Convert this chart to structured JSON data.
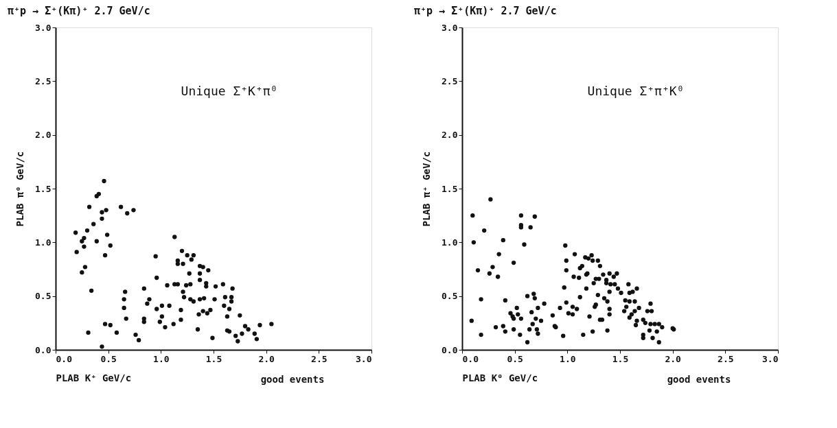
{
  "chart_data": [
    {
      "type": "scatter",
      "title": "π⁺p → Σ⁺(Kπ)⁺          2.7 GeV/c",
      "xlabel": "PLAB K⁺   GeV/c",
      "ylabel": "PLAB π⁰   GeV/c",
      "annotations": [
        "Unique Σ⁺K⁺π⁰",
        "good events"
      ],
      "xlim": [
        0,
        3
      ],
      "ylim": [
        0,
        3
      ],
      "xticks": [
        {
          "value": 0,
          "label": "0.0"
        },
        0.5,
        {
          "value": 1,
          "label": "1.0"
        },
        1.5,
        {
          "value": 2,
          "label": "2.0"
        },
        2.5,
        {
          "value": 3,
          "label": "3.0"
        }
      ],
      "yticks": [
        {
          "value": 0,
          "label": "0.0"
        },
        0.5,
        {
          "value": 1,
          "label": "1.0"
        },
        1.5,
        {
          "value": 2,
          "label": "2.0"
        },
        2.5,
        {
          "value": 3,
          "label": "3.0"
        }
      ],
      "marker": "circle",
      "grid": false,
      "series": [
        {
          "color": "#111111",
          "x": [
            0.46,
            0.39,
            0.41,
            0.32,
            0.44,
            0.48,
            0.62,
            0.68,
            0.74,
            0.36,
            0.44,
            0.3,
            0.19,
            0.27,
            0.25,
            0.49,
            0.39,
            0.2,
            0.27,
            0.52,
            0.47,
            0.28,
            0.25,
            0.34,
            0.31,
            0.47,
            0.52,
            0.58,
            0.44,
            0.66,
            0.65,
            0.65,
            0.67,
            0.76,
            0.79,
            0.84,
            0.89,
            0.87,
            0.84,
            0.84,
            0.95,
            0.96,
            0.96,
            1.01,
            1.01,
            0.99,
            1.04,
            1.08,
            1.06,
            1.13,
            1.2,
            1.16,
            1.16,
            1.21,
            1.25,
            1.31,
            1.29,
            1.13,
            1.16,
            1.21,
            1.22,
            1.24,
            1.28,
            1.27,
            1.28,
            1.31,
            1.19,
            1.19,
            1.12,
            1.37,
            1.4,
            1.45,
            1.37,
            1.37,
            1.43,
            1.43,
            1.37,
            1.41,
            1.51,
            1.52,
            1.59,
            1.68,
            1.61,
            1.67,
            1.67,
            1.6,
            1.65,
            1.63,
            1.4,
            1.44,
            1.47,
            1.36,
            1.35,
            1.49,
            1.63,
            1.65,
            1.75,
            1.8,
            1.83,
            1.71,
            1.77,
            1.73,
            1.89,
            1.91,
            1.94,
            2.05
          ],
          "values": [
            1.57,
            1.43,
            1.45,
            1.33,
            1.28,
            1.3,
            1.33,
            1.27,
            1.3,
            1.17,
            1.22,
            1.11,
            1.09,
            1.04,
            1.01,
            1.07,
            1.01,
            0.91,
            0.96,
            0.97,
            0.88,
            0.77,
            0.72,
            0.55,
            0.16,
            0.24,
            0.23,
            0.16,
            0.03,
            0.54,
            0.47,
            0.39,
            0.29,
            0.14,
            0.09,
            0.57,
            0.47,
            0.43,
            0.29,
            0.26,
            0.87,
            0.67,
            0.38,
            0.41,
            0.31,
            0.26,
            0.21,
            0.41,
            0.6,
            1.05,
            0.92,
            0.83,
            0.8,
            0.8,
            0.88,
            0.88,
            0.84,
            0.61,
            0.61,
            0.54,
            0.49,
            0.6,
            0.61,
            0.71,
            0.47,
            0.45,
            0.37,
            0.28,
            0.24,
            0.78,
            0.77,
            0.74,
            0.71,
            0.65,
            0.62,
            0.59,
            0.47,
            0.48,
            0.47,
            0.59,
            0.61,
            0.57,
            0.49,
            0.49,
            0.45,
            0.41,
            0.38,
            0.31,
            0.36,
            0.34,
            0.37,
            0.33,
            0.19,
            0.11,
            0.18,
            0.17,
            0.32,
            0.22,
            0.19,
            0.13,
            0.15,
            0.08,
            0.15,
            0.1,
            0.23,
            0.24
          ]
        }
      ]
    },
    {
      "type": "scatter",
      "title": "π⁺p → Σ⁺(Kπ)⁺          2.7 GeV/c",
      "xlabel": "PLAB K⁰   GeV/c",
      "ylabel": "PLAB π⁺   GeV/c",
      "annotations": [
        "Unique Σ⁺π⁺K⁰",
        "good events"
      ],
      "xlim": [
        0,
        3
      ],
      "ylim": [
        0,
        3
      ],
      "xticks": [
        {
          "value": 0,
          "label": "0.0"
        },
        0.5,
        {
          "value": 1,
          "label": "1.0"
        },
        1.5,
        {
          "value": 2,
          "label": "2.0"
        },
        2.5,
        {
          "value": 3,
          "label": "3.0"
        }
      ],
      "yticks": [
        {
          "value": 0,
          "label": "0.0"
        },
        0.5,
        {
          "value": 1,
          "label": "1.0"
        },
        1.5,
        {
          "value": 2,
          "label": "2.0"
        },
        2.5,
        {
          "value": 3,
          "label": "3.0"
        }
      ],
      "marker": "circle",
      "grid": false,
      "series": [
        {
          "color": "#111111",
          "x": [
            0.1,
            0.27,
            0.11,
            0.21,
            0.39,
            0.35,
            0.15,
            0.29,
            0.26,
            0.34,
            0.49,
            0.56,
            0.56,
            0.56,
            0.69,
            0.65,
            0.59,
            0.18,
            0.09,
            0.18,
            0.32,
            0.39,
            0.41,
            0.41,
            0.46,
            0.49,
            0.48,
            0.52,
            0.53,
            0.56,
            0.49,
            0.55,
            0.62,
            0.62,
            0.68,
            0.69,
            0.66,
            0.67,
            0.7,
            0.72,
            0.75,
            0.78,
            0.64,
            0.71,
            0.72,
            0.86,
            0.88,
            0.89,
            0.93,
            0.96,
            0.97,
            0.99,
            1.01,
            1.05,
            1.05,
            1.09,
            0.98,
            0.99,
            0.99,
            1.06,
            1.07,
            1.12,
            1.14,
            1.11,
            1.12,
            1.18,
            1.18,
            1.19,
            1.17,
            1.2,
            1.23,
            1.24,
            1.15,
            1.21,
            1.24,
            1.25,
            1.27,
            1.3,
            1.29,
            1.31,
            1.26,
            1.27,
            1.29,
            1.31,
            1.33,
            1.34,
            1.37,
            1.4,
            1.44,
            1.47,
            1.37,
            1.41,
            1.45,
            1.35,
            1.38,
            1.4,
            1.4,
            1.4,
            1.38,
            1.48,
            1.51,
            1.58,
            1.59,
            1.62,
            1.66,
            1.55,
            1.59,
            1.64,
            1.54,
            1.56,
            1.59,
            1.61,
            1.64,
            1.68,
            1.66,
            1.65,
            1.72,
            1.76,
            1.79,
            1.74,
            1.79,
            1.83,
            1.87,
            1.72,
            1.72,
            1.78,
            1.81,
            1.85,
            1.87,
            1.9,
            2.0,
            2.01,
            1.8
          ],
          "values": [
            1.25,
            1.4,
            1.0,
            1.11,
            1.02,
            0.89,
            0.74,
            0.77,
            0.71,
            0.68,
            0.81,
            1.25,
            1.16,
            1.14,
            1.24,
            1.14,
            0.98,
            0.47,
            0.27,
            0.14,
            0.21,
            0.22,
            0.17,
            0.46,
            0.34,
            0.29,
            0.31,
            0.39,
            0.33,
            0.29,
            0.19,
            0.14,
            0.07,
            0.5,
            0.52,
            0.48,
            0.35,
            0.24,
            0.29,
            0.39,
            0.27,
            0.43,
            0.19,
            0.19,
            0.15,
            0.32,
            0.22,
            0.21,
            0.39,
            0.13,
            0.58,
            0.44,
            0.34,
            0.33,
            0.4,
            0.38,
            0.97,
            0.83,
            0.74,
            0.68,
            0.89,
            0.76,
            0.78,
            0.67,
            0.49,
            0.57,
            0.7,
            0.71,
            0.86,
            0.85,
            0.88,
            0.83,
            0.14,
            0.31,
            0.17,
            0.62,
            0.66,
            0.66,
            0.83,
            0.78,
            0.4,
            0.42,
            0.51,
            0.28,
            0.28,
            0.7,
            0.65,
            0.71,
            0.68,
            0.71,
            0.62,
            0.61,
            0.61,
            0.48,
            0.45,
            0.54,
            0.38,
            0.33,
            0.18,
            0.57,
            0.53,
            0.61,
            0.53,
            0.54,
            0.57,
            0.46,
            0.45,
            0.45,
            0.36,
            0.4,
            0.3,
            0.33,
            0.36,
            0.39,
            0.27,
            0.23,
            0.28,
            0.36,
            0.43,
            0.25,
            0.24,
            0.24,
            0.24,
            0.14,
            0.11,
            0.18,
            0.11,
            0.17,
            0.07,
            0.21,
            0.2,
            0.19,
            0.36
          ]
        }
      ]
    }
  ]
}
